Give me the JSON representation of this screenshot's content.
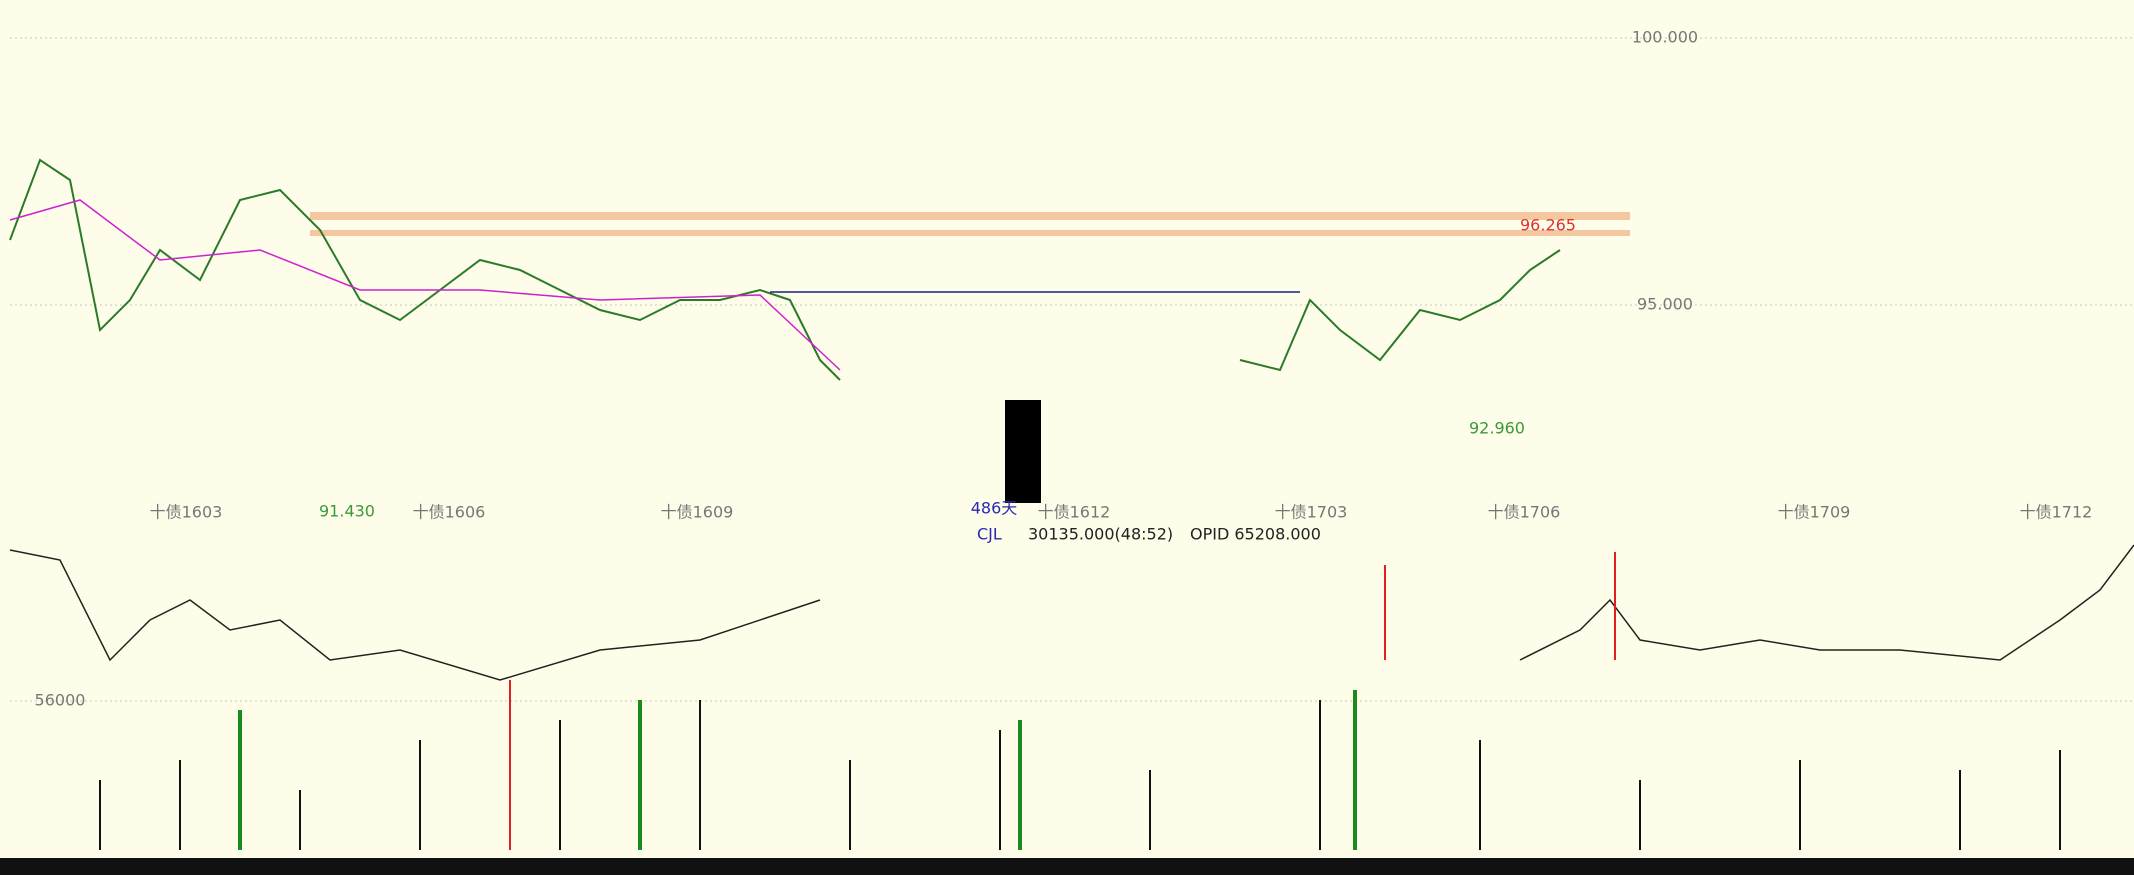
{
  "price_panel": {
    "y_labels": [
      "100.000",
      "95.000"
    ],
    "high_label": "96.265",
    "low_labels": [
      "92.960",
      "91.430"
    ],
    "days_label": "486天",
    "contracts": [
      "十债1603",
      "十债1606",
      "十债1609",
      "十债1612",
      "十债1703",
      "十债1706",
      "十债1709",
      "十债1712"
    ]
  },
  "volume_panel": {
    "indicator": "CJL",
    "volume": "30135.000(48:52)",
    "open_interest": "OPID 65208.000",
    "y_label": "56000"
  }
}
